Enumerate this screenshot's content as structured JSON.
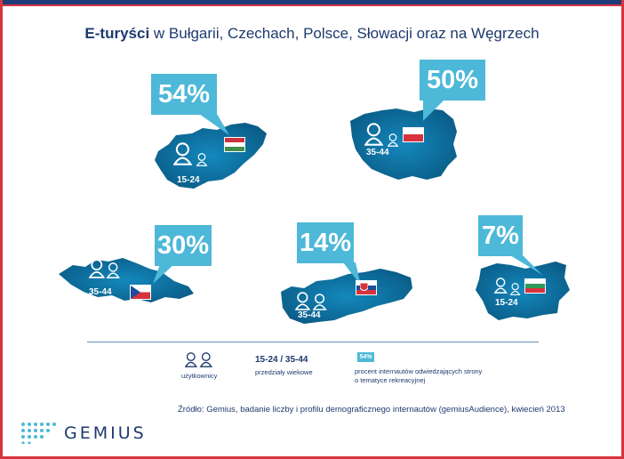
{
  "header": {
    "title_bold": "E-turyści",
    "title_rest": " w Bułgarii, Czechach, Polsce, Słowacji oraz na Węgrzech"
  },
  "countries": [
    {
      "id": "hungary",
      "percent": "54%",
      "age_range": "15-24",
      "flag": "hungary-flag"
    },
    {
      "id": "poland",
      "percent": "50%",
      "age_range": "35-44",
      "flag": "poland-flag"
    },
    {
      "id": "czech",
      "percent": "30%",
      "age_range": "35-44",
      "flag": "czech-flag"
    },
    {
      "id": "slovakia",
      "percent": "14%",
      "age_range": "35-44",
      "flag": "slovakia-flag"
    },
    {
      "id": "bulgaria",
      "percent": "7%",
      "age_range": "15-24",
      "flag": "bulgaria-flag"
    }
  ],
  "legend": {
    "users_label": "użytkownicy",
    "ages_value": "15-24 / 35-44",
    "ages_label": "przedziały wiekowe",
    "badge_value": "54%",
    "badge_label_line1": "procent internautów odwiedzających strony",
    "badge_label_line2": "o tematyce rekreacyjnej"
  },
  "source": "Źródło: Gemius, badanie liczby i profilu demograficznego internautów (gemiusAudience), kwiecień 2013",
  "logo": {
    "text": "GEMIUS"
  },
  "colors": {
    "map_fill": "#0d6fa0",
    "bubble": "#4db8d8",
    "text_dark": "#1e3a6e",
    "frame_red": "#d8343c",
    "frame_blue": "#1f3b7a"
  }
}
